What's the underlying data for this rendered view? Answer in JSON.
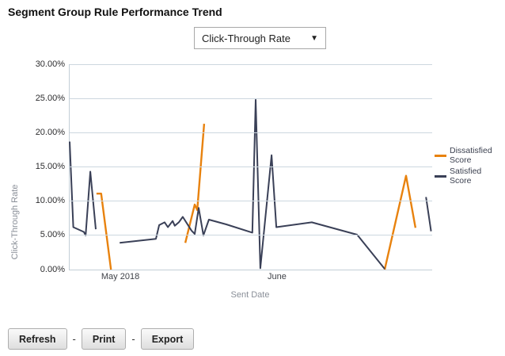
{
  "title": "Segment Group Rule Performance Trend",
  "metric_dropdown": {
    "selected": "Click-Through Rate"
  },
  "icons": {
    "dropdown_arrow": "▼"
  },
  "chart_data": {
    "type": "line",
    "title": "Segment Group Rule Performance Trend",
    "xlabel": "Sent Date",
    "ylabel": "Click-Through Rate",
    "ylim": [
      0,
      30
    ],
    "grid": true,
    "legend_position": "right",
    "y_ticks": [
      {
        "value": 0,
        "label": "0.00%"
      },
      {
        "value": 5,
        "label": "5.00%"
      },
      {
        "value": 10,
        "label": "10.00%"
      },
      {
        "value": 15,
        "label": "15.00%"
      },
      {
        "value": 20,
        "label": "20.00%"
      },
      {
        "value": 25,
        "label": "25.00%"
      },
      {
        "value": 30,
        "label": "30.00%"
      }
    ],
    "x_ticks": [
      {
        "pos": 0.142,
        "label": "May 2018"
      },
      {
        "pos": 0.574,
        "label": "June"
      }
    ],
    "x_unit": "fraction of plotted date range (values in percent)",
    "series": [
      {
        "name": "Dissatisfied Score",
        "color": "#e8820e",
        "stroke_width": 2.4,
        "segments": [
          [
            [
              0.074,
              11.1
            ],
            [
              0.087,
              11.1
            ],
            [
              0.114,
              0.0
            ]
          ],
          [
            [
              0.319,
              3.9
            ],
            [
              0.345,
              9.5
            ],
            [
              0.352,
              8.7
            ],
            [
              0.371,
              21.3
            ]
          ],
          [
            [
              0.869,
              0.0
            ],
            [
              0.928,
              13.7
            ],
            [
              0.954,
              6.1
            ]
          ]
        ]
      },
      {
        "name": "Satisfied Score",
        "color": "#3a4057",
        "stroke_width": 2,
        "segments": [
          [
            [
              0.0,
              18.7
            ],
            [
              0.01,
              6.2
            ],
            [
              0.039,
              5.5
            ],
            [
              0.044,
              5.0
            ],
            [
              0.057,
              14.3
            ],
            [
              0.072,
              5.9
            ]
          ],
          [
            [
              0.138,
              3.9
            ],
            [
              0.238,
              4.5
            ],
            [
              0.247,
              6.5
            ],
            [
              0.262,
              6.9
            ],
            [
              0.271,
              6.2
            ],
            [
              0.284,
              7.1
            ],
            [
              0.29,
              6.4
            ],
            [
              0.301,
              6.9
            ],
            [
              0.312,
              7.7
            ],
            [
              0.336,
              5.7
            ],
            [
              0.345,
              5.2
            ],
            [
              0.356,
              9.0
            ],
            [
              0.369,
              5.0
            ],
            [
              0.384,
              7.3
            ],
            [
              0.432,
              6.6
            ],
            [
              0.504,
              5.4
            ],
            [
              0.513,
              24.8
            ],
            [
              0.526,
              0.2
            ],
            [
              0.557,
              16.7
            ],
            [
              0.57,
              6.2
            ],
            [
              0.668,
              6.9
            ],
            [
              0.793,
              5.1
            ],
            [
              0.869,
              0.1
            ]
          ],
          [
            [
              0.983,
              10.6
            ],
            [
              0.997,
              5.6
            ]
          ]
        ]
      }
    ]
  },
  "legend": {
    "items": [
      {
        "label": "Dissatisfied Score",
        "color": "#e8820e"
      },
      {
        "label": "Satisfied Score",
        "color": "#3a4057"
      }
    ]
  },
  "footer": {
    "refresh": "Refresh",
    "print": "Print",
    "export": "Export",
    "separator": "-"
  }
}
